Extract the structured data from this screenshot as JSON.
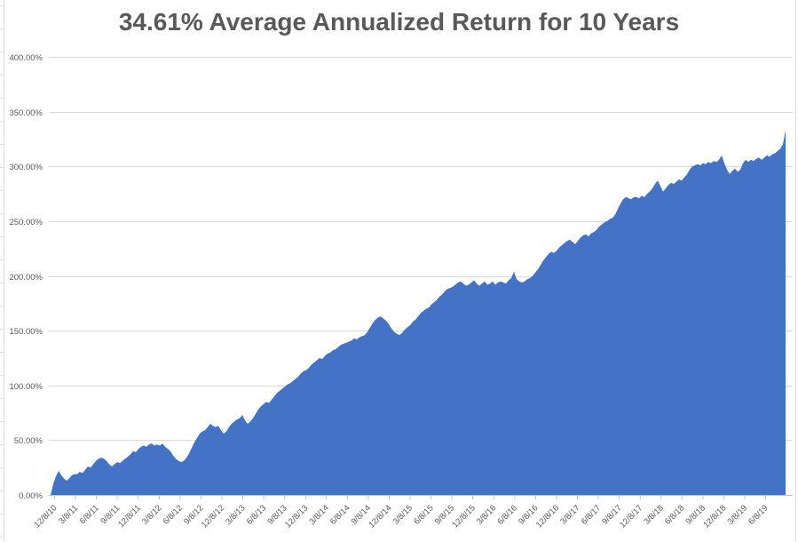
{
  "chart_data": {
    "type": "area",
    "title": "34.61% Average Annualized Return for 10 Years",
    "series_name": "cumulative-return",
    "legend": "none",
    "grid": "horizontal",
    "ylim": [
      0,
      400
    ],
    "y_tick_labels": [
      "400.00%",
      "350.00%",
      "300.00%",
      "250.00%",
      "200.00%",
      "150.00%",
      "100.00%",
      "50.00%",
      "0.00%"
    ],
    "y_tick_values": [
      400,
      350,
      300,
      250,
      200,
      150,
      100,
      50,
      0
    ],
    "x_tick_labels": [
      "12/8/10",
      "3/8/11",
      "6/8/11",
      "9/8/11",
      "12/8/11",
      "3/8/12",
      "6/8/12",
      "9/8/12",
      "12/8/12",
      "3/8/13",
      "6/8/13",
      "9/8/13",
      "12/8/13",
      "3/8/14",
      "6/8/14",
      "9/8/14",
      "12/8/14",
      "3/8/15",
      "6/8/15",
      "9/8/15",
      "12/8/15",
      "3/8/16",
      "6/8/16",
      "9/8/16",
      "12/8/16",
      "3/8/17",
      "6/8/17",
      "9/8/17",
      "12/8/17",
      "3/8/18",
      "6/8/18",
      "9/8/18",
      "12/8/18",
      "3/8/19",
      "6/8/19"
    ],
    "x_start": "12/8/10",
    "x_end_label": "6/8/19",
    "colors": {
      "area_fill": "#4472C4",
      "title_text": "#595959",
      "axis_text": "#595959",
      "gridline": "#D9D9D9",
      "axis_line": "#BFBFBF",
      "frame_line": "#DCDCDC",
      "sheet_line": "#E4E4E4",
      "background": "#FFFFFF"
    },
    "values_pct": [
      0,
      10,
      17,
      22,
      18,
      15,
      13,
      15,
      18,
      19,
      19,
      21,
      20,
      23,
      26,
      25,
      28,
      31,
      33,
      34,
      33,
      31,
      28,
      26,
      28,
      30,
      29,
      31,
      33,
      35,
      37,
      40,
      39,
      42,
      44,
      45,
      44,
      46,
      47,
      45,
      46,
      45,
      47,
      44,
      42,
      40,
      36,
      33,
      31,
      30,
      31,
      34,
      38,
      43,
      48,
      52,
      56,
      58,
      59,
      62,
      65,
      63,
      62,
      63,
      59,
      56,
      58,
      62,
      65,
      67,
      69,
      70,
      73,
      68,
      65,
      67,
      70,
      74,
      78,
      81,
      83,
      85,
      84,
      87,
      90,
      93,
      95,
      97,
      99,
      101,
      102,
      104,
      106,
      108,
      111,
      113,
      114,
      116,
      119,
      121,
      123,
      125,
      124,
      127,
      129,
      130,
      132,
      133,
      135,
      137,
      138,
      139,
      140,
      141,
      143,
      142,
      144,
      145,
      146,
      149,
      153,
      157,
      160,
      162,
      163,
      161,
      159,
      156,
      152,
      149,
      147,
      146,
      148,
      151,
      153,
      155,
      158,
      160,
      163,
      166,
      168,
      170,
      171,
      174,
      176,
      178,
      181,
      183,
      186,
      188,
      189,
      190,
      192,
      194,
      195,
      193,
      191,
      192,
      194,
      196,
      193,
      191,
      193,
      195,
      192,
      193,
      195,
      192,
      194,
      195,
      194,
      193,
      196,
      198,
      204,
      197,
      195,
      194,
      195,
      197,
      198,
      200,
      203,
      206,
      210,
      214,
      217,
      220,
      222,
      221,
      223,
      226,
      228,
      230,
      232,
      233,
      231,
      229,
      232,
      235,
      237,
      238,
      236,
      239,
      240,
      242,
      245,
      247,
      249,
      250,
      252,
      253,
      256,
      261,
      266,
      270,
      272,
      271,
      270,
      272,
      272,
      271,
      273,
      272,
      275,
      277,
      280,
      284,
      287,
      282,
      277,
      280,
      283,
      285,
      284,
      286,
      288,
      287,
      290,
      293,
      297,
      300,
      301,
      302,
      301,
      303,
      302,
      304,
      303,
      305,
      304,
      306,
      310,
      303,
      297,
      293,
      296,
      298,
      295,
      297,
      303,
      306,
      304,
      306,
      305,
      307,
      308,
      306,
      308,
      310,
      309,
      311,
      312,
      314,
      316,
      320,
      333
    ]
  }
}
